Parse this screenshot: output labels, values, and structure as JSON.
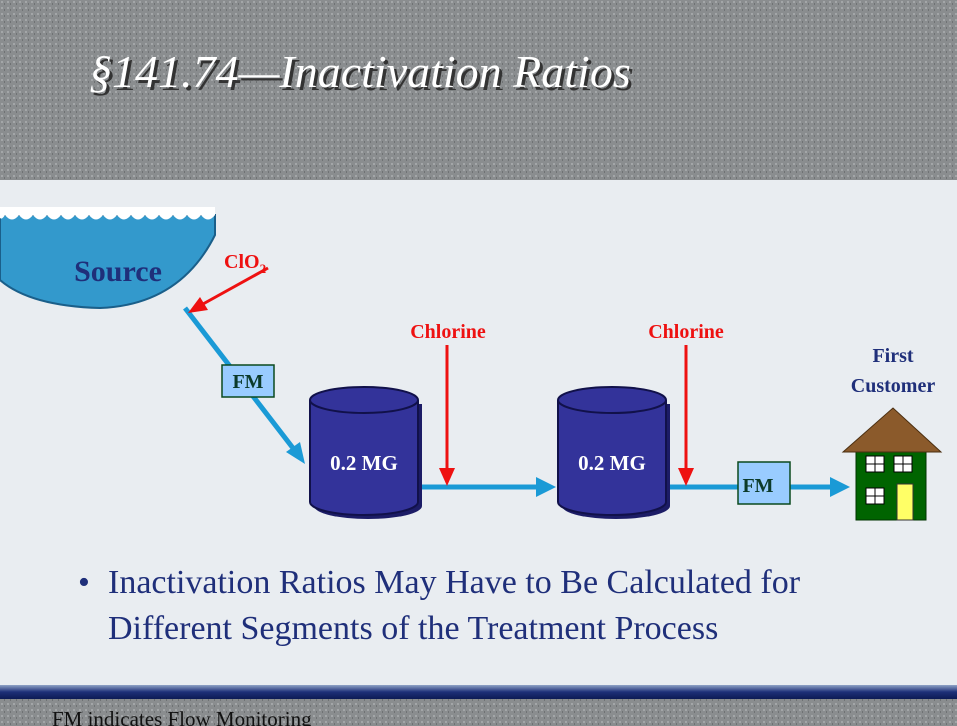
{
  "title": "§141.74—Inactivation Ratios",
  "diagram": {
    "source": "Source",
    "disinfectant_source": {
      "text": "ClO",
      "subscript": "2"
    },
    "chlorine_points": [
      "Chlorine",
      "Chlorine"
    ],
    "tanks": [
      "0.2 MG",
      "0.2 MG"
    ],
    "flow_meters": [
      "FM",
      "FM"
    ],
    "customer": [
      "First",
      "Customer"
    ]
  },
  "bullets": [
    "Inactivation Ratios May Have to Be Calculated for Different Segments of the Treatment Process"
  ],
  "footer": "FM indicates Flow Monitoring"
}
